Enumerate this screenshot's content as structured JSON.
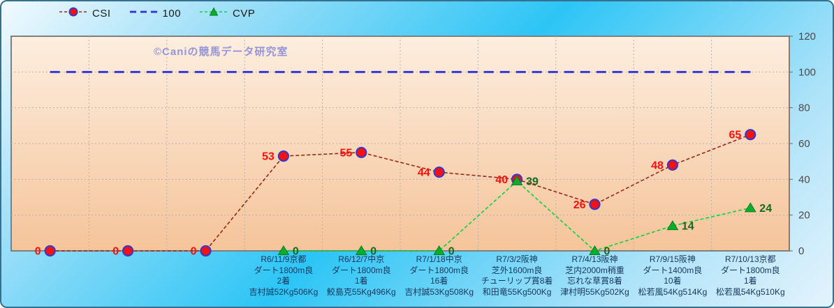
{
  "watermark": "©Caniの競馬データ研究室",
  "legend": {
    "items": [
      {
        "label": "CSI",
        "series": "CSI"
      },
      {
        "label": "100",
        "series": "100"
      },
      {
        "label": "CVP",
        "series": "CVP"
      }
    ]
  },
  "colors": {
    "background_light": "#f2fafe",
    "background_cyan": "#2cc5f5",
    "frame_border": "#35718f",
    "plot_fill_top": "#fdeedf",
    "plot_fill_bottom": "#f5c49a",
    "plot_border": "#7f7f7f",
    "gridline": "#b3b3b3",
    "ytick_label": "#4a4a4a",
    "xtick_label": "#16365d",
    "watermark": "#9595d9"
  },
  "chart_data": {
    "type": "line",
    "title": "",
    "xlabel": "",
    "ylabel": "",
    "ylim": [
      0,
      120
    ],
    "yticks": [
      0,
      20,
      40,
      60,
      80,
      100,
      120
    ],
    "grid": true,
    "legend_position": "top-left",
    "y_axis_side": "right",
    "categories": [
      [],
      [],
      [],
      [
        "R6/11/9京都",
        "ダート1800m良",
        "2着",
        "吉村誠52Kg506Kg"
      ],
      [
        "R6/12/7中京",
        "ダート1800m良",
        "1着",
        "鮫島克55Kg496Kg"
      ],
      [
        "R7/1/18中京",
        "ダート1800m良",
        "16着",
        "吉村誠53Kg508Kg"
      ],
      [
        "R7/3/2阪神",
        "芝外1600m良",
        "チューリップ賞8着",
        "和田竜55Kg500Kg"
      ],
      [
        "R7/4/13阪神",
        "芝内2000m稍重",
        "忘れな草賞8着",
        "津村明55Kg502Kg"
      ],
      [
        "R7/9/15阪神",
        "ダート1400m良",
        "10着",
        "松若風54Kg514Kg"
      ],
      [
        "R7/10/13京都",
        "ダート1800m良",
        "1着",
        "松若風54Kg510Kg"
      ]
    ],
    "series": [
      {
        "name": "100",
        "type": "reference",
        "value": 100,
        "color": "#2f2fe0",
        "dash": "14 9",
        "width": 2.8,
        "marker": "none"
      },
      {
        "name": "CSI",
        "type": "line-marker",
        "values": [
          0,
          0,
          0,
          53,
          55,
          44,
          40,
          26,
          48,
          65
        ],
        "color": "#96281b",
        "dash": "5 3",
        "width": 1.6,
        "marker": "circle",
        "marker_fill": "#f41111",
        "marker_stroke": "#3939c6",
        "label_color": "#fb0f0c",
        "label_side": "left"
      },
      {
        "name": "CVP",
        "type": "line-marker",
        "values": [
          null,
          null,
          null,
          0,
          0,
          0,
          39,
          0,
          14,
          24
        ],
        "color": "#0ad33f",
        "dash": "5 3",
        "width": 1.6,
        "marker": "triangle",
        "marker_fill": "#0cad29",
        "marker_stroke": "#067d1e",
        "label_color": "#17691f",
        "label_side": "right"
      }
    ]
  }
}
